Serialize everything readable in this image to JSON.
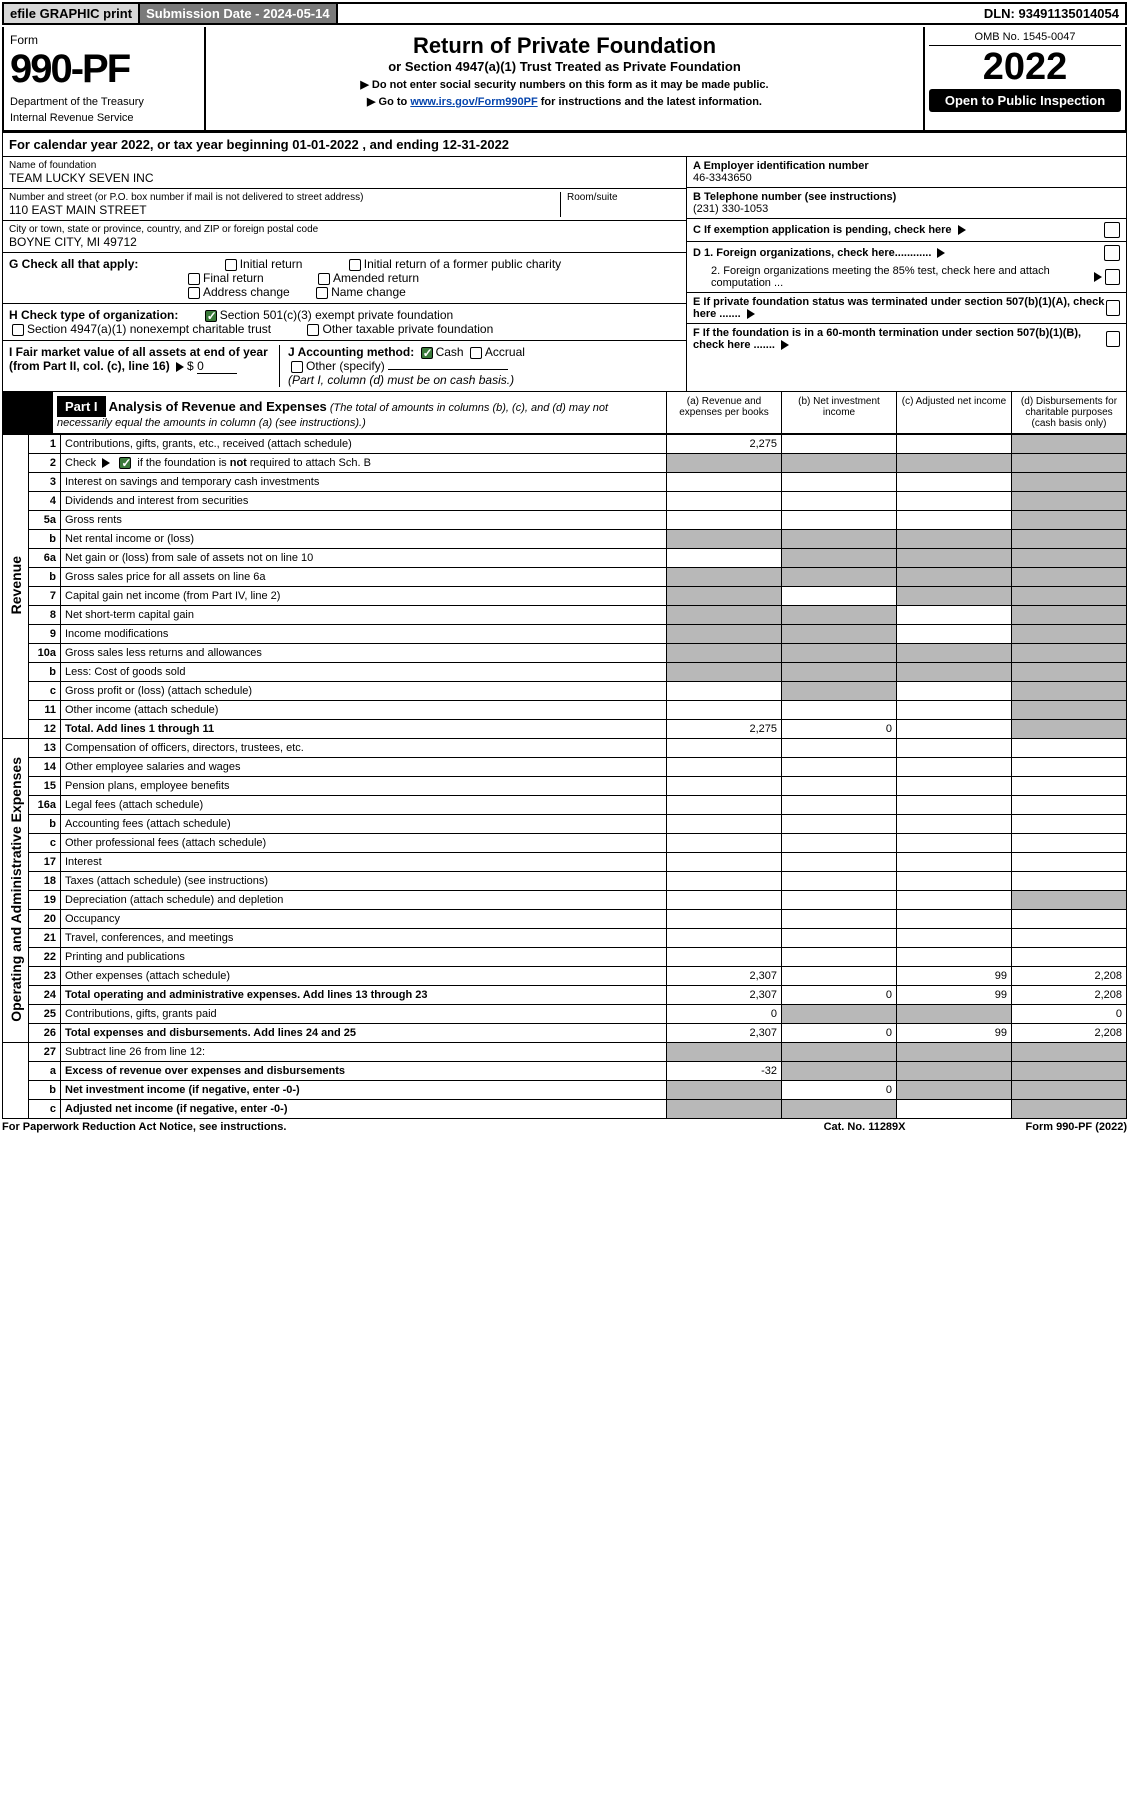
{
  "colors": {
    "topbar_btn_bg": "#d8d8d8",
    "topbar_subm_bg": "#7a7a7a",
    "shade_bg": "#b8b8b8",
    "check_green": "#3b7a3b",
    "link": "#0645ad"
  },
  "topbar": {
    "efile": "efile GRAPHIC print",
    "submission": "Submission Date - 2024-05-14",
    "dln": "DLN: 93491135014054"
  },
  "header": {
    "form_word": "Form",
    "form_num": "990-PF",
    "dept": "Department of the Treasury",
    "irs": "Internal Revenue Service",
    "title": "Return of Private Foundation",
    "subtitle": "or Section 4947(a)(1) Trust Treated as Private Foundation",
    "note1": "▶ Do not enter social security numbers on this form as it may be made public.",
    "note2_pre": "▶ Go to ",
    "note2_link": "www.irs.gov/Form990PF",
    "note2_post": " for instructions and the latest information.",
    "omb": "OMB No. 1545-0047",
    "year": "2022",
    "open": "Open to Public Inspection"
  },
  "calendar": {
    "pre": "For calendar year 2022, or tax year beginning ",
    "begin": "01-01-2022",
    "mid": " , and ending ",
    "end": "12-31-2022"
  },
  "entity": {
    "name_lbl": "Name of foundation",
    "name": "TEAM LUCKY SEVEN INC",
    "addr_lbl": "Number and street (or P.O. box number if mail is not delivered to street address)",
    "addr": "110 EAST MAIN STREET",
    "room_lbl": "Room/suite",
    "city_lbl": "City or town, state or province, country, and ZIP or foreign postal code",
    "city": "BOYNE CITY, MI  49712",
    "ein_lbl": "A Employer identification number",
    "ein": "46-3343650",
    "tel_lbl": "B Telephone number (see instructions)",
    "tel": "(231) 330-1053",
    "c_lbl": "C If exemption application is pending, check here",
    "d1_lbl": "D 1. Foreign organizations, check here............",
    "d2_lbl": "2. Foreign organizations meeting the 85% test, check here and attach computation ...",
    "e_lbl": "E If private foundation status was terminated under section 507(b)(1)(A), check here .......",
    "f_lbl": "F If the foundation is in a 60-month termination under section 507(b)(1)(B), check here ......."
  },
  "checks": {
    "g_lbl": "G Check all that apply:",
    "g_opts": [
      "Initial return",
      "Initial return of a former public charity",
      "Final return",
      "Amended return",
      "Address change",
      "Name change"
    ],
    "h_lbl": "H Check type of organization:",
    "h1": "Section 501(c)(3) exempt private foundation",
    "h2": "Section 4947(a)(1) nonexempt charitable trust",
    "h3": "Other taxable private foundation",
    "i_lbl": "I Fair market value of all assets at end of year (from Part II, col. (c), line 16)",
    "i_val": "0",
    "j_lbl": "J Accounting method:",
    "j_cash": "Cash",
    "j_accrual": "Accrual",
    "j_other": "Other (specify)",
    "j_note": "(Part I, column (d) must be on cash basis.)"
  },
  "part1": {
    "label": "Part I",
    "title": "Analysis of Revenue and Expenses",
    "title_note": "(The total of amounts in columns (b), (c), and (d) may not necessarily equal the amounts in column (a) (see instructions).)",
    "cols": {
      "a": "(a) Revenue and expenses per books",
      "b": "(b) Net investment income",
      "c": "(c) Adjusted net income",
      "d": "(d) Disbursements for charitable purposes (cash basis only)"
    }
  },
  "sections": {
    "revenue": "Revenue",
    "opex": "Operating and Administrative Expenses"
  },
  "lines": [
    {
      "n": "1",
      "t": "Contributions, gifts, grants, etc., received (attach schedule)",
      "a": "2,275",
      "b": "",
      "c": "",
      "d": "",
      "shade": [
        "d"
      ]
    },
    {
      "n": "2",
      "t": "Check ▶ ☑ if the foundation is not required to attach Sch. B",
      "has_check": true,
      "shade": [
        "a",
        "b",
        "c",
        "d"
      ]
    },
    {
      "n": "3",
      "t": "Interest on savings and temporary cash investments",
      "shade": [
        "d"
      ]
    },
    {
      "n": "4",
      "t": "Dividends and interest from securities",
      "shade": [
        "d"
      ]
    },
    {
      "n": "5a",
      "t": "Gross rents",
      "shade": [
        "d"
      ]
    },
    {
      "n": "b",
      "t": "Net rental income or (loss)",
      "shade": [
        "a",
        "b",
        "c",
        "d"
      ]
    },
    {
      "n": "6a",
      "t": "Net gain or (loss) from sale of assets not on line 10",
      "shade": [
        "b",
        "c",
        "d"
      ]
    },
    {
      "n": "b",
      "t": "Gross sales price for all assets on line 6a",
      "shade": [
        "a",
        "b",
        "c",
        "d"
      ]
    },
    {
      "n": "7",
      "t": "Capital gain net income (from Part IV, line 2)",
      "shade": [
        "a",
        "c",
        "d"
      ]
    },
    {
      "n": "8",
      "t": "Net short-term capital gain",
      "shade": [
        "a",
        "b",
        "d"
      ]
    },
    {
      "n": "9",
      "t": "Income modifications",
      "shade": [
        "a",
        "b",
        "d"
      ]
    },
    {
      "n": "10a",
      "t": "Gross sales less returns and allowances",
      "shade": [
        "a",
        "b",
        "c",
        "d"
      ]
    },
    {
      "n": "b",
      "t": "Less: Cost of goods sold",
      "shade": [
        "a",
        "b",
        "c",
        "d"
      ]
    },
    {
      "n": "c",
      "t": "Gross profit or (loss) (attach schedule)",
      "shade": [
        "b",
        "d"
      ]
    },
    {
      "n": "11",
      "t": "Other income (attach schedule)",
      "shade": [
        "d"
      ]
    },
    {
      "n": "12",
      "t": "Total. Add lines 1 through 11",
      "bold": true,
      "a": "2,275",
      "b": "0",
      "shade": [
        "d"
      ]
    }
  ],
  "exp_lines": [
    {
      "n": "13",
      "t": "Compensation of officers, directors, trustees, etc."
    },
    {
      "n": "14",
      "t": "Other employee salaries and wages"
    },
    {
      "n": "15",
      "t": "Pension plans, employee benefits"
    },
    {
      "n": "16a",
      "t": "Legal fees (attach schedule)"
    },
    {
      "n": "b",
      "t": "Accounting fees (attach schedule)"
    },
    {
      "n": "c",
      "t": "Other professional fees (attach schedule)"
    },
    {
      "n": "17",
      "t": "Interest"
    },
    {
      "n": "18",
      "t": "Taxes (attach schedule) (see instructions)"
    },
    {
      "n": "19",
      "t": "Depreciation (attach schedule) and depletion",
      "shade": [
        "d"
      ]
    },
    {
      "n": "20",
      "t": "Occupancy"
    },
    {
      "n": "21",
      "t": "Travel, conferences, and meetings"
    },
    {
      "n": "22",
      "t": "Printing and publications"
    },
    {
      "n": "23",
      "t": "Other expenses (attach schedule)",
      "a": "2,307",
      "c": "99",
      "d": "2,208"
    },
    {
      "n": "24",
      "t": "Total operating and administrative expenses. Add lines 13 through 23",
      "bold": true,
      "a": "2,307",
      "b": "0",
      "c": "99",
      "d": "2,208"
    },
    {
      "n": "25",
      "t": "Contributions, gifts, grants paid",
      "a": "0",
      "d": "0",
      "shade": [
        "b",
        "c"
      ]
    },
    {
      "n": "26",
      "t": "Total expenses and disbursements. Add lines 24 and 25",
      "bold": true,
      "a": "2,307",
      "b": "0",
      "c": "99",
      "d": "2,208"
    }
  ],
  "net_lines": [
    {
      "n": "27",
      "t": "Subtract line 26 from line 12:",
      "shade": [
        "a",
        "b",
        "c",
        "d"
      ]
    },
    {
      "n": "a",
      "t": "Excess of revenue over expenses and disbursements",
      "bold": true,
      "a": "-32",
      "shade": [
        "b",
        "c",
        "d"
      ]
    },
    {
      "n": "b",
      "t": "Net investment income (if negative, enter -0-)",
      "bold": true,
      "b": "0",
      "shade": [
        "a",
        "c",
        "d"
      ]
    },
    {
      "n": "c",
      "t": "Adjusted net income (if negative, enter -0-)",
      "bold": true,
      "shade": [
        "a",
        "b",
        "d"
      ]
    }
  ],
  "footer": {
    "left": "For Paperwork Reduction Act Notice, see instructions.",
    "mid": "Cat. No. 11289X",
    "right": "Form 990-PF (2022)"
  }
}
